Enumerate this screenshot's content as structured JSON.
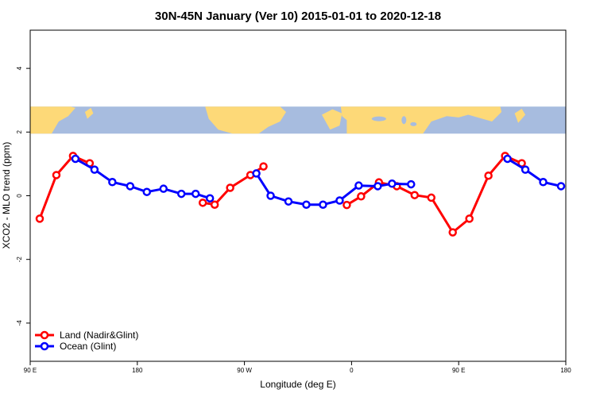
{
  "chart_data": {
    "type": "line",
    "title": "30N-45N January (Ver 10)   2015-01-01 to 2020-12-18",
    "xlabel": "Longitude (deg E)",
    "ylabel": "XCO2 - MLO trend (ppm)",
    "xlim": [
      90,
      540
    ],
    "ylim": [
      -5.2,
      5.2
    ],
    "x_ticks": [
      {
        "value": 90,
        "label": "90 E"
      },
      {
        "value": 180,
        "label": "180"
      },
      {
        "value": 270,
        "label": "90 W"
      },
      {
        "value": 360,
        "label": "0"
      },
      {
        "value": 450,
        "label": "90 E"
      },
      {
        "value": 540,
        "label": "180"
      }
    ],
    "y_ticks": [
      {
        "value": -4,
        "label": "-4"
      },
      {
        "value": -2,
        "label": "-2"
      },
      {
        "value": 0,
        "label": "0"
      },
      {
        "value": 2,
        "label": "2"
      },
      {
        "value": 4,
        "label": "4"
      }
    ],
    "map_band": {
      "y_bottom": 1.95,
      "y_top": 2.8,
      "ocean_color": "#a7bcdf",
      "land_color": "#fdd978"
    },
    "legend": {
      "position": "bottom-left"
    },
    "series": [
      {
        "name": "Land (Nadir&Glint)",
        "color": "#ff0000",
        "segments": [
          [
            [
              98,
              -0.72
            ],
            [
              112,
              0.65
            ],
            [
              126,
              1.25
            ],
            [
              140,
              1.02
            ]
          ],
          [
            [
              235,
              -0.22
            ],
            [
              245,
              -0.28
            ],
            [
              258,
              0.25
            ],
            [
              275,
              0.65
            ],
            [
              286,
              0.92
            ]
          ],
          [
            [
              356,
              -0.29
            ],
            [
              368,
              -0.02
            ],
            [
              383,
              0.42
            ],
            [
              398,
              0.3
            ],
            [
              413,
              0.02
            ],
            [
              427,
              -0.06
            ],
            [
              445,
              -1.15
            ],
            [
              459,
              -0.72
            ],
            [
              475,
              0.63
            ],
            [
              489,
              1.25
            ],
            [
              503,
              1.02
            ]
          ]
        ]
      },
      {
        "name": "Ocean (Glint)",
        "color": "#0000ff",
        "segments": [
          [
            [
              128,
              1.16
            ],
            [
              144,
              0.82
            ],
            [
              159,
              0.43
            ],
            [
              174,
              0.3
            ],
            [
              188,
              0.12
            ],
            [
              202,
              0.22
            ],
            [
              217,
              0.06
            ],
            [
              229,
              0.06
            ],
            [
              241,
              -0.08
            ]
          ],
          [
            [
              280,
              0.7
            ],
            [
              292,
              0.0
            ],
            [
              307,
              -0.18
            ],
            [
              322,
              -0.28
            ],
            [
              336,
              -0.28
            ],
            [
              350,
              -0.15
            ],
            [
              366,
              0.32
            ],
            [
              382,
              0.3
            ],
            [
              394,
              0.38
            ],
            [
              410,
              0.36
            ]
          ],
          [
            [
              491,
              1.16
            ],
            [
              506,
              0.82
            ],
            [
              521,
              0.43
            ],
            [
              536,
              0.3
            ]
          ]
        ]
      }
    ]
  }
}
